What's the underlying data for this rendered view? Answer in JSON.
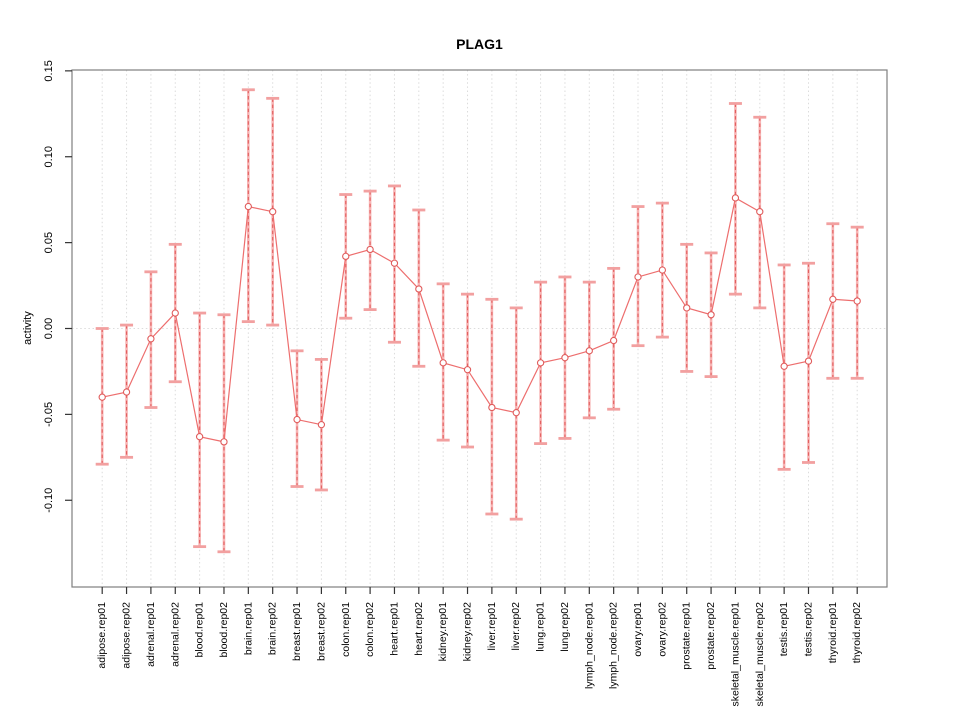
{
  "title": "PLAG1",
  "chart_data": {
    "type": "line",
    "title": "PLAG1",
    "xlabel": "",
    "ylabel": "activity",
    "ylim": [
      -0.1505,
      0.1505
    ],
    "yticks": [
      0.15,
      0.1,
      0.05,
      0.0,
      -0.05,
      -0.1
    ],
    "ytick_labels": [
      "0.15",
      "0.10",
      "0.05",
      "0.00",
      "-0.05",
      "-0.10"
    ],
    "grid": "vertical dotted gridline at every category; dotted horizontal line at 0.00 only",
    "legend_position": "none",
    "marker": "open-circle",
    "error_bars": true,
    "categories": [
      "adipose.rep01",
      "adipose.rep02",
      "adrenal.rep01",
      "adrenal.rep02",
      "blood.rep01",
      "blood.rep02",
      "brain.rep01",
      "brain.rep02",
      "breast.rep01",
      "breast.rep02",
      "colon.rep01",
      "colon.rep02",
      "heart.rep01",
      "heart.rep02",
      "kidney.rep01",
      "kidney.rep02",
      "liver.rep01",
      "liver.rep02",
      "lung.rep01",
      "lung.rep02",
      "lymph_node.rep01",
      "lymph_node.rep02",
      "ovary.rep01",
      "ovary.rep02",
      "prostate.rep01",
      "prostate.rep02",
      "skeletal_muscle.rep01",
      "skeletal_muscle.rep02",
      "testis.rep01",
      "testis.rep02",
      "thyroid.rep01",
      "thyroid.rep02"
    ],
    "series": [
      {
        "name": "activity",
        "values": [
          -0.04,
          -0.037,
          -0.006,
          0.009,
          -0.063,
          -0.066,
          0.071,
          0.068,
          -0.053,
          -0.056,
          0.042,
          0.046,
          0.038,
          0.023,
          -0.02,
          -0.024,
          -0.046,
          -0.049,
          -0.02,
          -0.017,
          -0.013,
          -0.007,
          0.03,
          0.034,
          0.012,
          0.008,
          0.076,
          0.068,
          -0.022,
          -0.019,
          0.017,
          0.016
        ]
      }
    ],
    "error_low": [
      -0.079,
      -0.075,
      -0.046,
      -0.031,
      -0.127,
      -0.13,
      0.004,
      0.002,
      -0.092,
      -0.094,
      0.006,
      0.011,
      -0.008,
      -0.022,
      -0.065,
      -0.069,
      -0.108,
      -0.111,
      -0.067,
      -0.064,
      -0.052,
      -0.047,
      -0.01,
      -0.005,
      -0.025,
      -0.028,
      0.02,
      0.012,
      -0.082,
      -0.078,
      -0.029,
      -0.029
    ],
    "error_high": [
      0.0,
      0.002,
      0.033,
      0.049,
      0.009,
      0.008,
      0.139,
      0.134,
      -0.013,
      -0.018,
      0.078,
      0.08,
      0.083,
      0.069,
      0.026,
      0.02,
      0.017,
      0.012,
      0.027,
      0.03,
      0.027,
      0.035,
      0.071,
      0.073,
      0.049,
      0.044,
      0.131,
      0.123,
      0.037,
      0.038,
      0.061,
      0.059
    ]
  },
  "colors": {
    "line": "#ED6E6E",
    "marker_stroke": "#E05C5C",
    "marker_fill": "#FFFFFF",
    "errorbar_stem": "#F7B4B4",
    "errorbar_dash": "#E25F5F",
    "errorbar_cap": "#F2A0A0",
    "gridline": "#DCDCDC",
    "plot_border": "#7F7F7F",
    "tick": "#333333",
    "text": "#000000"
  }
}
